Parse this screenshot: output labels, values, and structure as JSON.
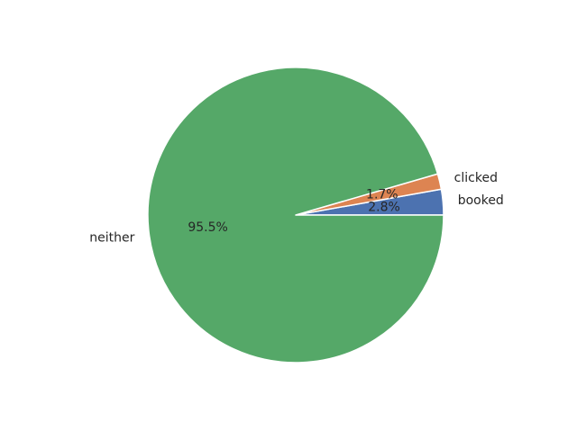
{
  "chart_data": {
    "type": "pie",
    "title": "",
    "start_angle_deg": 0,
    "direction": "counterclockwise",
    "slices": [
      {
        "label": "booked",
        "value": 2.8,
        "pct_label": "2.8%",
        "color": "#4c72b0"
      },
      {
        "label": "clicked",
        "value": 1.7,
        "pct_label": "1.7%",
        "color": "#dd8452"
      },
      {
        "label": "neither",
        "value": 95.5,
        "pct_label": "95.5%",
        "color": "#55a868"
      }
    ],
    "edge_color": "#ffffff",
    "legend": "none"
  }
}
